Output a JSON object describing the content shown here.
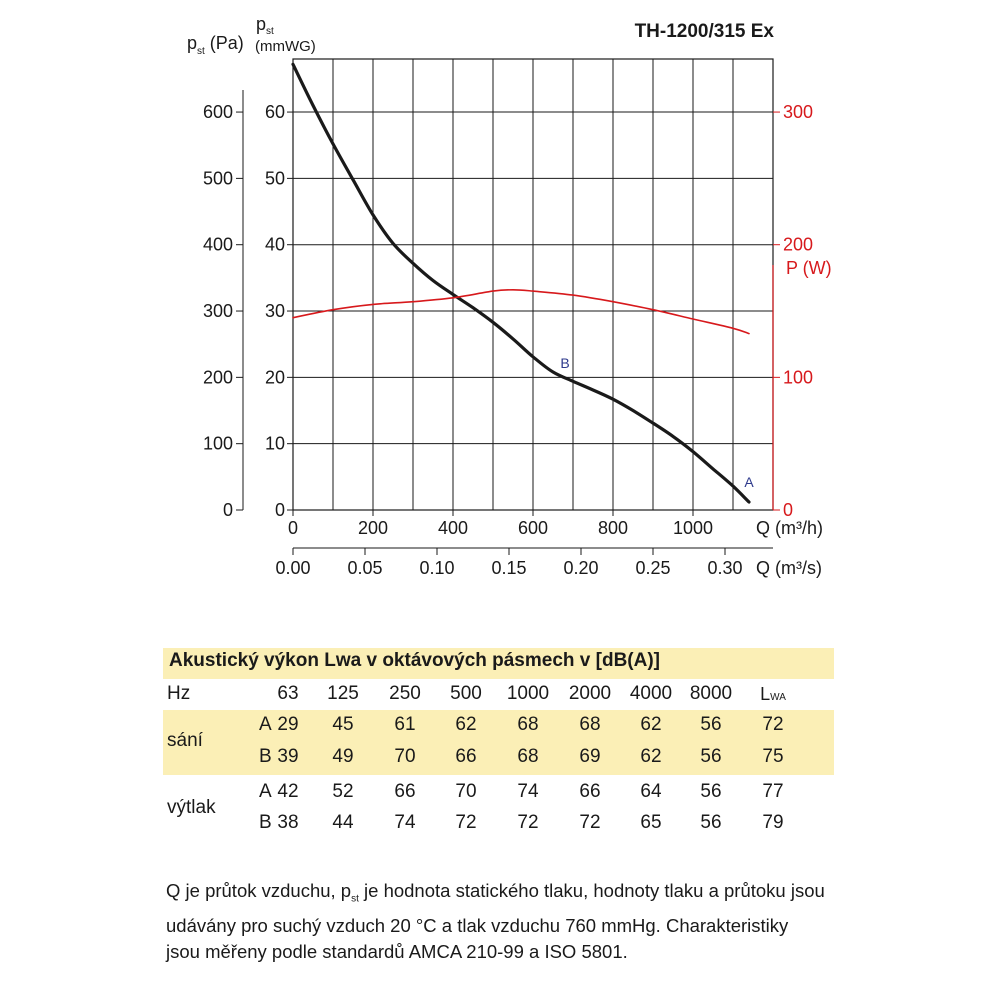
{
  "chart_data": {
    "type": "line",
    "title": "TH-1200/315 Ex",
    "axes": {
      "y_left_pa": {
        "label_main": "p",
        "label_sub": "st",
        "label_unit": "(Pa)",
        "range": [
          0,
          680
        ],
        "ticks": [
          0,
          100,
          200,
          300,
          400,
          500,
          600
        ]
      },
      "y_left_mmwg": {
        "label_main": "p",
        "label_sub": "st",
        "label_unit": "(mmWG)",
        "range": [
          0,
          68
        ],
        "ticks": [
          0,
          10,
          20,
          30,
          40,
          50,
          60
        ]
      },
      "y_right_w": {
        "label": "P (W)",
        "range": [
          0,
          340
        ],
        "ticks": [
          0,
          100,
          200,
          300
        ],
        "color": "#d7191c"
      },
      "x_m3h": {
        "label": "Q (m³/h)",
        "range": [
          0,
          1200
        ],
        "ticks": [
          0,
          200,
          400,
          600,
          800,
          1000
        ],
        "tick_labels": [
          "0",
          "200",
          "400",
          "600",
          "800",
          "1000"
        ]
      },
      "x_m3s": {
        "label": "Q (m³/s)",
        "ticks": [
          0,
          0.05,
          0.1,
          0.15,
          0.2,
          0.25,
          0.3
        ],
        "tick_labels": [
          "0.00",
          "0.05",
          "0.10",
          "0.15",
          "0.20",
          "0.25",
          "0.30"
        ]
      }
    },
    "grid": true,
    "series": [
      {
        "role": "static pressure",
        "axis": "y_left_pa",
        "color": "#1a1a1a",
        "x": [
          0,
          50,
          100,
          150,
          200,
          250,
          300,
          350,
          400,
          450,
          500,
          550,
          600,
          650,
          700,
          750,
          800,
          850,
          900,
          950,
          1000,
          1050,
          1100,
          1140
        ],
        "y": [
          672,
          610,
          552,
          498,
          445,
          402,
          372,
          346,
          325,
          305,
          283,
          258,
          231,
          208,
          194,
          181,
          167,
          150,
          131,
          111,
          88,
          62,
          36,
          12
        ]
      },
      {
        "role": "power",
        "axis": "y_right_w",
        "color": "#d7191c",
        "x": [
          0,
          100,
          200,
          300,
          400,
          500,
          550,
          600,
          700,
          800,
          900,
          1000,
          1100,
          1140
        ],
        "y": [
          145,
          151,
          155,
          157,
          160,
          165,
          166,
          165,
          162,
          157,
          151,
          144,
          137,
          133
        ]
      }
    ],
    "annotations": [
      {
        "text": "B",
        "x": 680,
        "y": 222,
        "color": "#2e3a8c"
      },
      {
        "text": "A",
        "x": 1140,
        "y": 42,
        "color": "#2e3a8c"
      }
    ]
  },
  "acoustic": {
    "title": "Akustický výkon Lwa v oktávových pásmech v [dB(A)]",
    "hz_label": "Hz",
    "frequencies": [
      "63",
      "125",
      "250",
      "500",
      "1000",
      "2000",
      "4000",
      "8000"
    ],
    "lwa_main": "L",
    "lwa_sub": "WA",
    "groups": [
      {
        "name": "sání",
        "highlight": true,
        "rows": [
          {
            "label": "A",
            "values": [
              "29",
              "45",
              "61",
              "62",
              "68",
              "68",
              "62",
              "56",
              "72"
            ]
          },
          {
            "label": "B",
            "values": [
              "39",
              "49",
              "70",
              "66",
              "68",
              "69",
              "62",
              "56",
              "75"
            ]
          }
        ]
      },
      {
        "name": "výtlak",
        "highlight": false,
        "rows": [
          {
            "label": "A",
            "values": [
              "42",
              "52",
              "66",
              "70",
              "74",
              "66",
              "64",
              "56",
              "77"
            ]
          },
          {
            "label": "B",
            "values": [
              "38",
              "44",
              "74",
              "72",
              "72",
              "72",
              "65",
              "56",
              "79"
            ]
          }
        ]
      }
    ]
  },
  "footnote": {
    "part1": "Q je průtok vzduchu, p",
    "sub": "st",
    "part2": " je hodnota statického tlaku, hodnoty tlaku a průtoku jsou udávány pro suchý vzduch 20 °C a tlak vzduchu 760 mmHg. Charakteristiky jsou měřeny podle standardů AMCA 210-99 a ISO 5801."
  }
}
